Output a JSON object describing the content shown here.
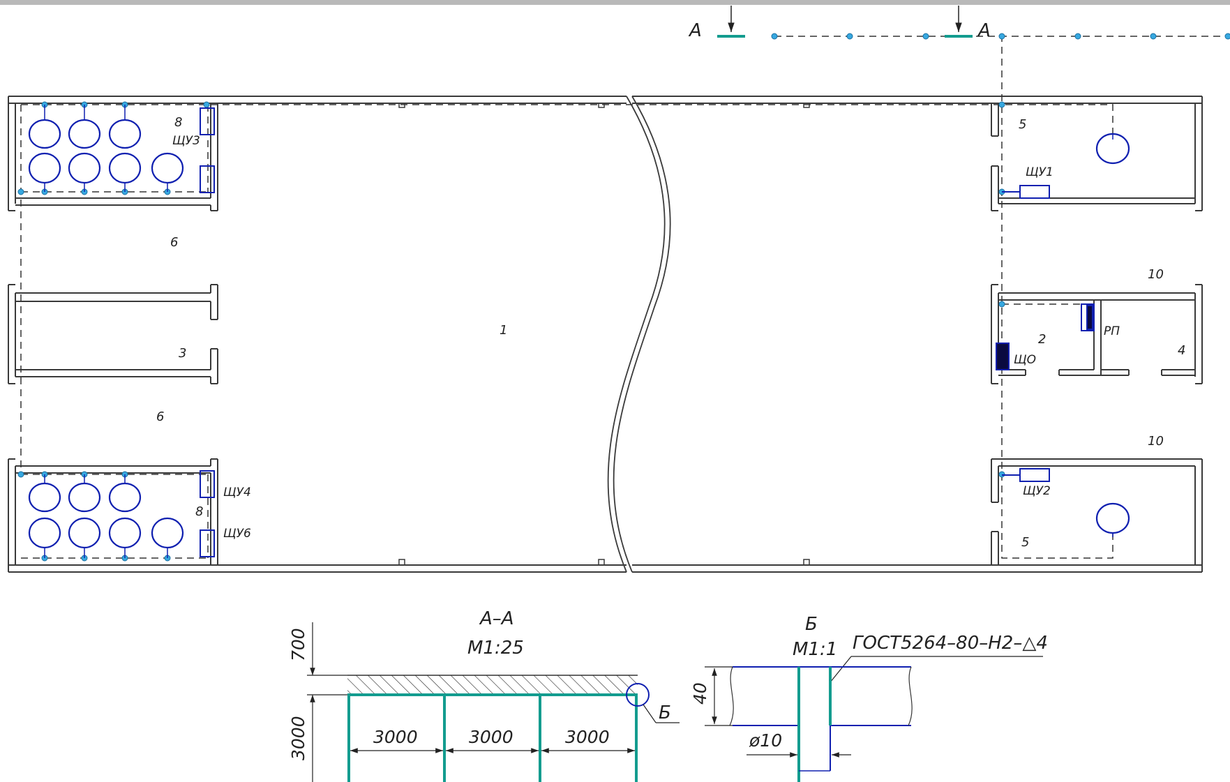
{
  "colors": {
    "wall": "#3a3a3a",
    "blue": "#1020b0",
    "teal": "#139c8f",
    "node": "#37a8e0",
    "dash": "#333333"
  },
  "plan": {
    "section_letter": "А",
    "rooms": {
      "hall": "1",
      "room2": "2",
      "room3": "3",
      "room4": "4",
      "room5_top": "5",
      "room5_bottom": "5",
      "corridor6_top": "6",
      "corridor6_bottom": "6",
      "room8_top": "8",
      "room8_bottom": "8",
      "room10_top": "10",
      "room10_bottom": "10"
    },
    "panels": {
      "shu1": "ЩУ1",
      "shu2": "ЩУ2",
      "shu3": "ЩУ3",
      "shu4": "ЩУ4",
      "shu6": "ЩУ6",
      "rp": "РП",
      "shchO": "ЩО"
    }
  },
  "section_aa": {
    "title": "А–А",
    "scale": "М1:25",
    "height_top": "700",
    "height_main": "3000",
    "spans": [
      "3000",
      "3000",
      "3000"
    ],
    "callout": "Б"
  },
  "detail_b": {
    "title": "Б",
    "scale": "М1:1",
    "weld_note": "ГОСТ5264–80–Н2–△4",
    "thickness": "40",
    "diameter": "ø10"
  }
}
